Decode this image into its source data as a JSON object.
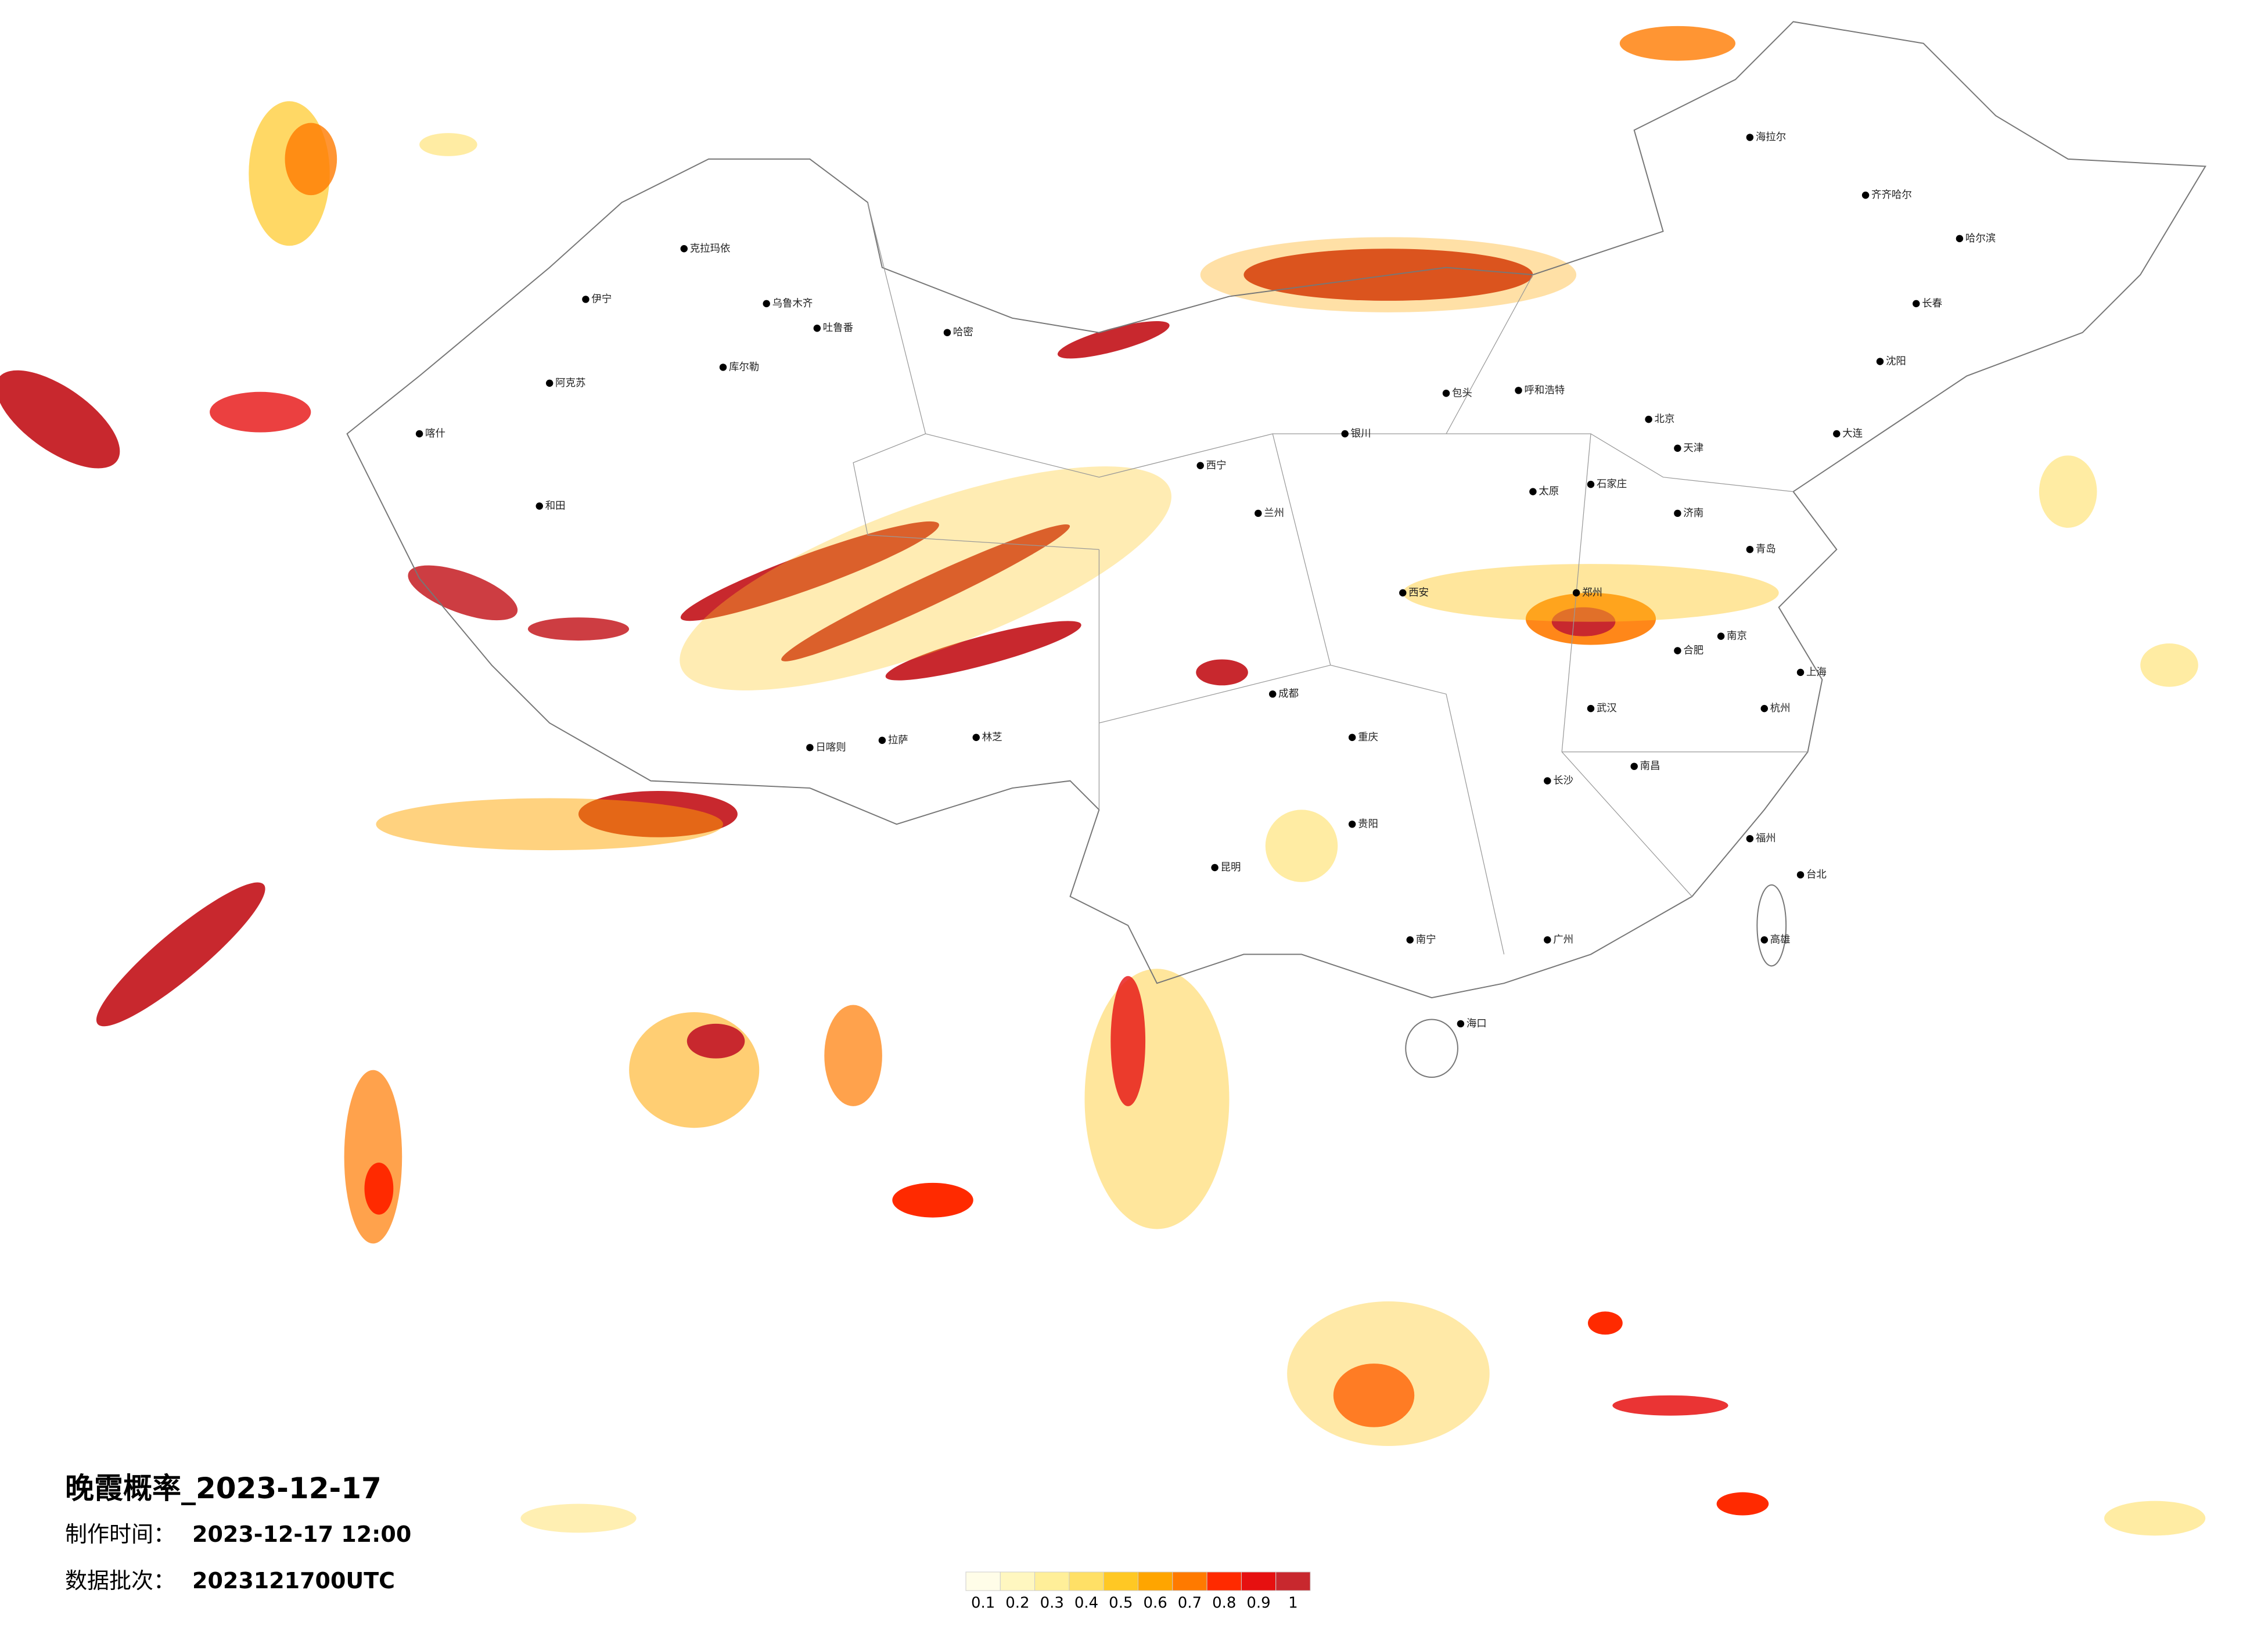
{
  "header": {
    "title": "晚霞概率_2023-12-17",
    "made_label": "制作时间：",
    "made_time": "2023-12-17 12:00",
    "batch_label": "数据批次：",
    "batch": "2023121700UTC"
  },
  "legend": {
    "colors": [
      "#fffde8",
      "#fff7c0",
      "#ffef99",
      "#ffe066",
      "#ffc824",
      "#ffa500",
      "#ff7a00",
      "#ff2a00",
      "#e61010",
      "#c8282e"
    ],
    "labels": [
      0.1,
      0.2,
      0.3,
      0.4,
      0.5,
      0.6,
      0.7,
      0.8,
      0.9,
      1
    ]
  },
  "cities": [
    "克拉玛依",
    "伊宁",
    "乌鲁木齐",
    "吐鲁番",
    "哈密",
    "库尔勒",
    "阿克苏",
    "喀什",
    "和田",
    "拉萨",
    "日喀则",
    "林芝",
    "西宁",
    "兰州",
    "银川",
    "呼和浩特",
    "包头",
    "北京",
    "天津",
    "石家庄",
    "太原",
    "济南",
    "青岛",
    "郑州",
    "西安",
    "武汉",
    "长沙",
    "南昌",
    "合肥",
    "南京",
    "上海",
    "杭州",
    "福州",
    "广州",
    "南宁",
    "海口",
    "贵阳",
    "昆明",
    "成都",
    "重庆",
    "哈尔滨",
    "长春",
    "沈阳",
    "大连",
    "台北",
    "高雄",
    "海拉尔",
    "齐齐哈尔"
  ]
}
